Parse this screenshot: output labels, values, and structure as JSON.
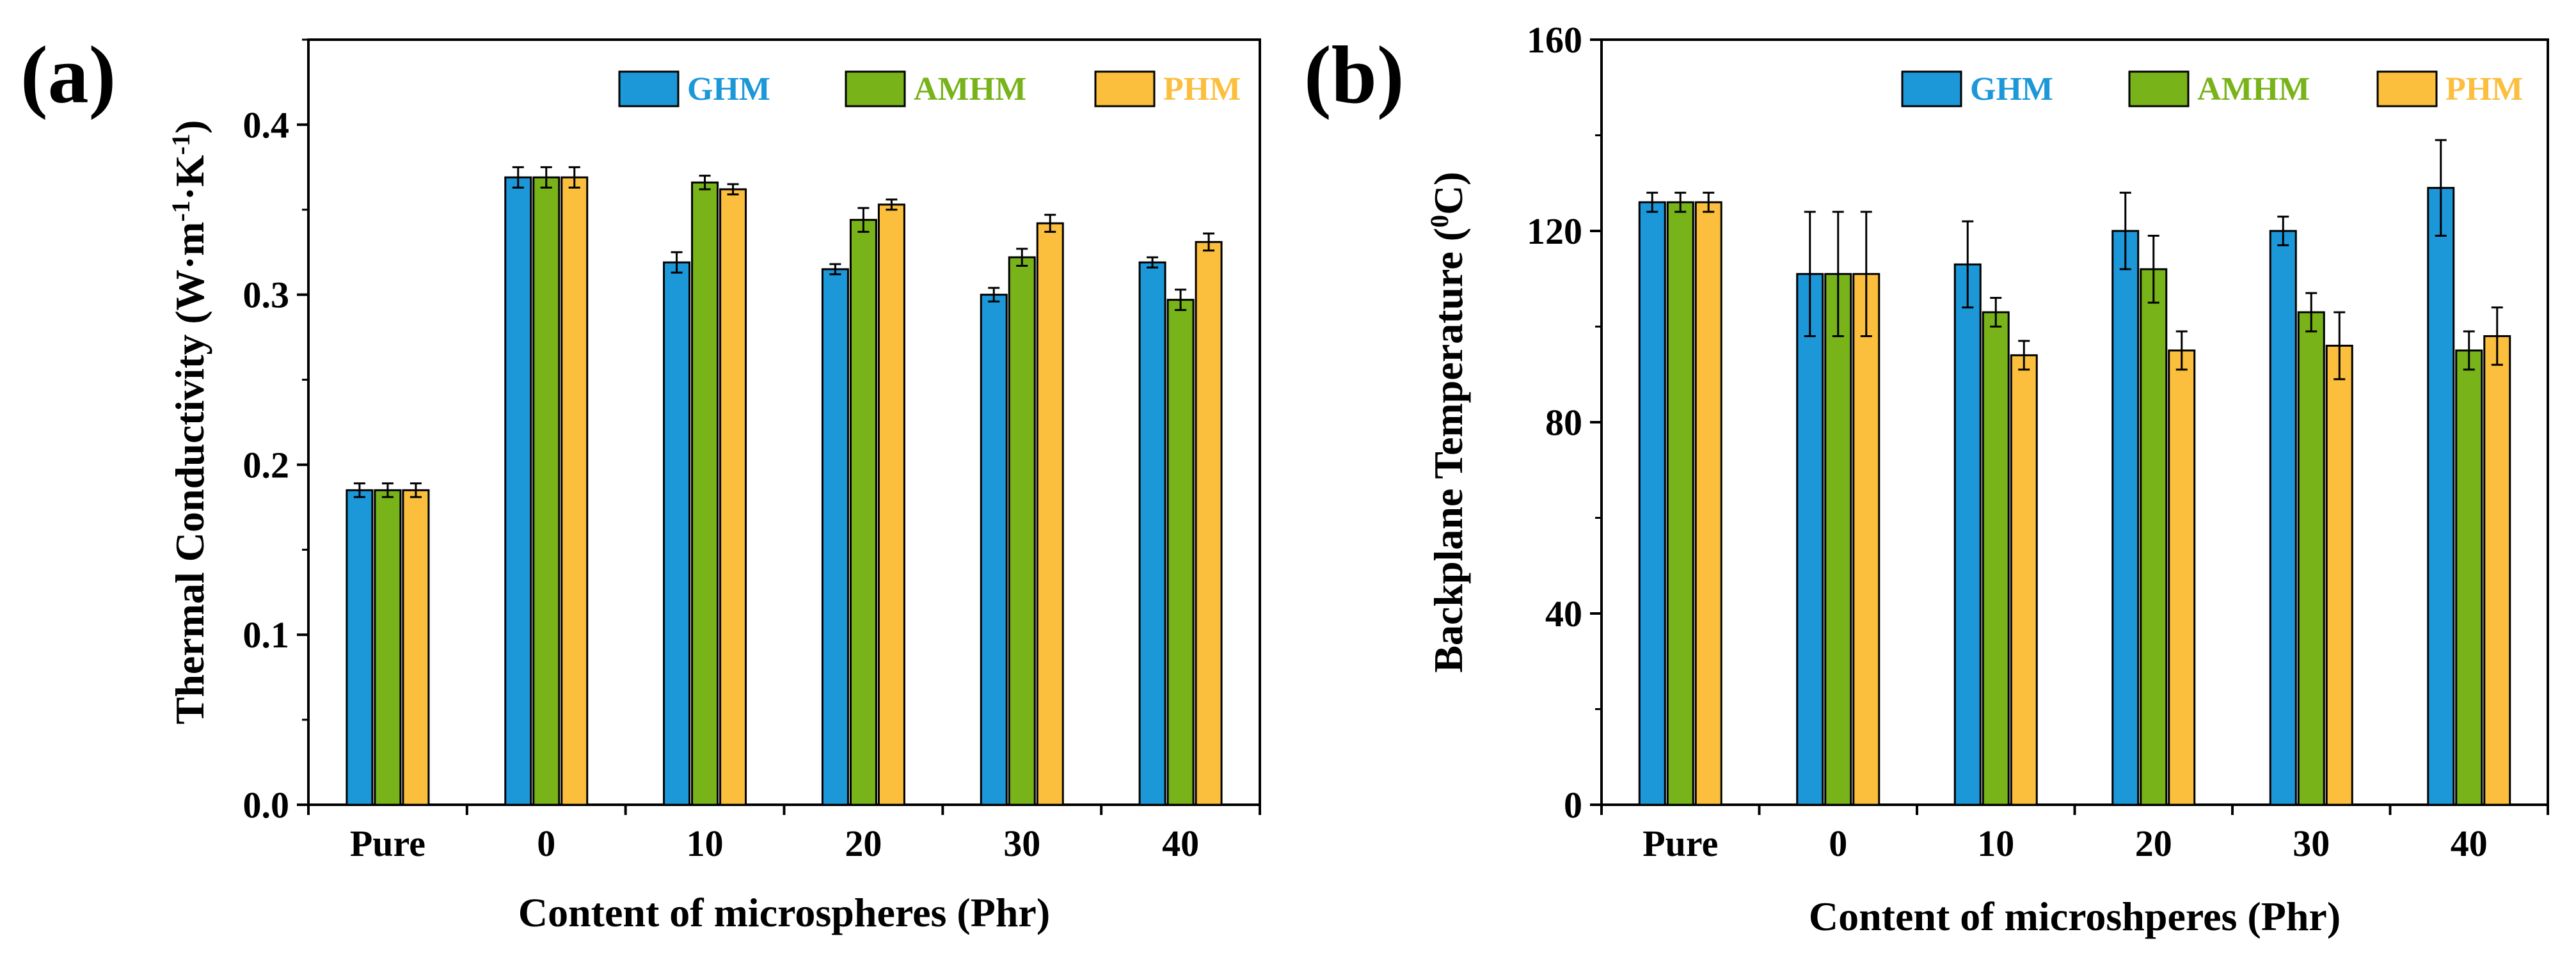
{
  "chart_data": [
    {
      "type": "bar",
      "panel_label": "(a)",
      "xlabel": "Content of microspheres (Phr)",
      "ylabel": "Thermal Conductivity (W·m-1·K-1)",
      "ylabel_parts": {
        "main": "Thermal Conductivity (W·m",
        "sup1": "-1",
        "mid": "·K",
        "sup2": "-1",
        "end": ")"
      },
      "ylim": [
        0,
        0.45
      ],
      "yticks": [
        "0.0",
        "0.1",
        "0.2",
        "0.3",
        "0.4"
      ],
      "categories": [
        "Pure",
        "0",
        "10",
        "20",
        "30",
        "40"
      ],
      "series": [
        {
          "name": "GHM",
          "color": "#1C97D8",
          "values": [
            0.185,
            0.369,
            0.319,
            0.315,
            0.3,
            0.319
          ],
          "errors": [
            0.004,
            0.006,
            0.006,
            0.003,
            0.004,
            0.003
          ]
        },
        {
          "name": "AMHM",
          "color": "#77B319",
          "values": [
            0.185,
            0.369,
            0.366,
            0.344,
            0.322,
            0.297
          ],
          "errors": [
            0.004,
            0.006,
            0.004,
            0.007,
            0.005,
            0.006
          ]
        },
        {
          "name": "PHM",
          "color": "#FBBE3D",
          "values": [
            0.185,
            0.369,
            0.362,
            0.353,
            0.342,
            0.331
          ],
          "errors": [
            0.004,
            0.006,
            0.003,
            0.003,
            0.005,
            0.005
          ]
        }
      ],
      "legend_position": "top-right"
    },
    {
      "type": "bar",
      "panel_label": "(b)",
      "xlabel": "Content of microshperes (Phr)",
      "ylabel": "Backplane Temperature (0C)",
      "ylabel_parts": {
        "main": "Backplane Temperature (",
        "sup1": "0",
        "mid": "C)",
        "sup2": "",
        "end": ""
      },
      "ylim": [
        0,
        160
      ],
      "yticks": [
        "0",
        "40",
        "80",
        "120",
        "160"
      ],
      "categories": [
        "Pure",
        "0",
        "10",
        "20",
        "30",
        "40"
      ],
      "series": [
        {
          "name": "GHM",
          "color": "#1C97D8",
          "values": [
            126,
            111,
            113,
            120,
            120,
            129
          ],
          "errors": [
            2,
            13,
            9,
            8,
            3,
            10
          ]
        },
        {
          "name": "AMHM",
          "color": "#77B319",
          "values": [
            126,
            111,
            103,
            112,
            103,
            95
          ],
          "errors": [
            2,
            13,
            3,
            7,
            4,
            4
          ]
        },
        {
          "name": "PHM",
          "color": "#FBBE3D",
          "values": [
            126,
            111,
            94,
            95,
            96,
            98
          ],
          "errors": [
            2,
            13,
            3,
            4,
            7,
            6
          ]
        }
      ],
      "legend_position": "top-right"
    }
  ]
}
